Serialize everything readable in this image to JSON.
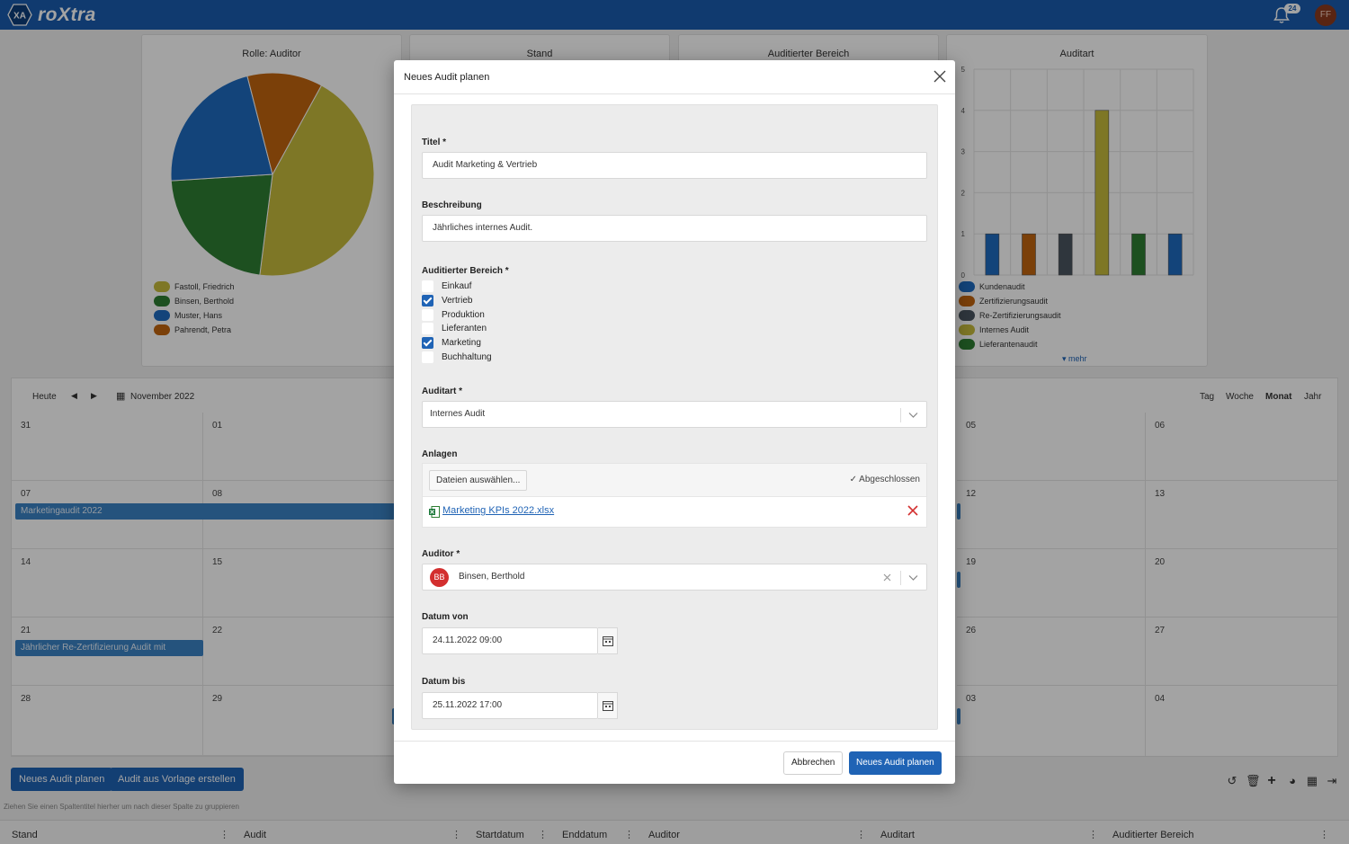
{
  "app": {
    "logo_mark": "XA",
    "name": "roXtra",
    "notification_count": "24",
    "user_initials": "FF"
  },
  "dashboard": {
    "cards": [
      {
        "title": "Rolle: Auditor"
      },
      {
        "title": "Stand"
      },
      {
        "title": "Auditierter Bereich"
      },
      {
        "title": "Auditart"
      }
    ],
    "pie_legend": [
      {
        "label": "Fastoll, Friedrich",
        "color": "#c6bb3c"
      },
      {
        "label": "Binsen, Berthold",
        "color": "#2e7d32"
      },
      {
        "label": "Muster, Hans",
        "color": "#1e6bbf"
      },
      {
        "label": "Pahrendt, Petra",
        "color": "#c0640f"
      }
    ],
    "bar_legend": [
      {
        "label": "Kundenaudit",
        "color": "#1e6bbf"
      },
      {
        "label": "Zertifizierungsaudit",
        "color": "#c0640f"
      },
      {
        "label": "Re-Zertifizierungsaudit",
        "color": "#4a5560"
      },
      {
        "label": "Internes Audit",
        "color": "#c6bb3c"
      },
      {
        "label": "Lieferantenaudit",
        "color": "#2e7d32"
      }
    ],
    "bar_more": "mehr"
  },
  "chart_data": [
    {
      "type": "pie",
      "title": "Rolle: Auditor",
      "labels": [
        "Fastoll, Friedrich",
        "Binsen, Berthold",
        "Muster, Hans",
        "Pahrendt, Petra"
      ],
      "values": [
        44,
        22,
        22,
        12
      ],
      "colors": [
        "#c6bb3c",
        "#2e7d32",
        "#1e6bbf",
        "#c0640f"
      ]
    },
    {
      "type": "bar",
      "title": "Auditart",
      "categories": [
        "Kundenaudit",
        "Zertifizierungsaudit",
        "Re-Zertifizierungsaudit",
        "Internes Audit",
        "Lieferantenaudit",
        ""
      ],
      "values": [
        1,
        1,
        1,
        4,
        1,
        1
      ],
      "colors": [
        "#1e6bbf",
        "#c0640f",
        "#4a5560",
        "#c6bb3c",
        "#2e7d32",
        "#1e6bbf"
      ],
      "ylim": [
        0,
        5
      ],
      "yticks": [
        "0",
        "1",
        "2",
        "3",
        "4",
        "5"
      ]
    }
  ],
  "calendar": {
    "today": "Heute",
    "month_label": "November 2022",
    "views": [
      "Tag",
      "Woche",
      "Monat",
      "Jahr"
    ],
    "left_days": [
      "31",
      "01",
      "07",
      "08",
      "14",
      "15",
      "21",
      "22",
      "28",
      "29"
    ],
    "right_days": [
      "05",
      "06",
      "12",
      "13",
      "19",
      "20",
      "26",
      "27",
      "03",
      "04"
    ],
    "events": [
      "Marketingaudit 2022",
      "Jährlicher Re-Zertifizierung Audit mit"
    ]
  },
  "actions": {
    "new_audit": "Neues Audit planen",
    "from_template": "Audit aus Vorlage erstellen"
  },
  "grid": {
    "group_hint": "Ziehen Sie einen Spaltentitel hierher um nach dieser Spalte zu gruppieren",
    "columns": [
      "Stand",
      "Audit",
      "Startdatum",
      "Enddatum",
      "Auditor",
      "Auditart",
      "Auditierter Bereich"
    ]
  },
  "modal": {
    "title": "Neues Audit planen",
    "titel_label": "Titel *",
    "titel_value": "Audit Marketing & Vertrieb",
    "beschreibung_label": "Beschreibung",
    "beschreibung_value": "Jährliches internes Audit.",
    "bereich_label": "Auditierter Bereich *",
    "bereiche": [
      {
        "label": "Einkauf",
        "checked": false
      },
      {
        "label": "Vertrieb",
        "checked": true
      },
      {
        "label": "Produktion",
        "checked": false
      },
      {
        "label": "Lieferanten",
        "checked": false
      },
      {
        "label": "Marketing",
        "checked": true
      },
      {
        "label": "Buchhaltung",
        "checked": false
      }
    ],
    "auditart_label": "Auditart *",
    "auditart_value": "Internes Audit",
    "anlagen_label": "Anlagen",
    "select_files": "Dateien auswählen...",
    "upload_status": "Abgeschlossen",
    "file_name": "Marketing KPIs 2022.xlsx",
    "auditor_label": "Auditor *",
    "auditor_initials": "BB",
    "auditor_value": "Binsen, Berthold",
    "datum_von_label": "Datum von",
    "datum_von_value": "24.11.2022 09:00",
    "datum_bis_label": "Datum bis",
    "datum_bis_value": "25.11.2022 17:00",
    "cancel": "Abbrechen",
    "submit": "Neues Audit planen"
  }
}
